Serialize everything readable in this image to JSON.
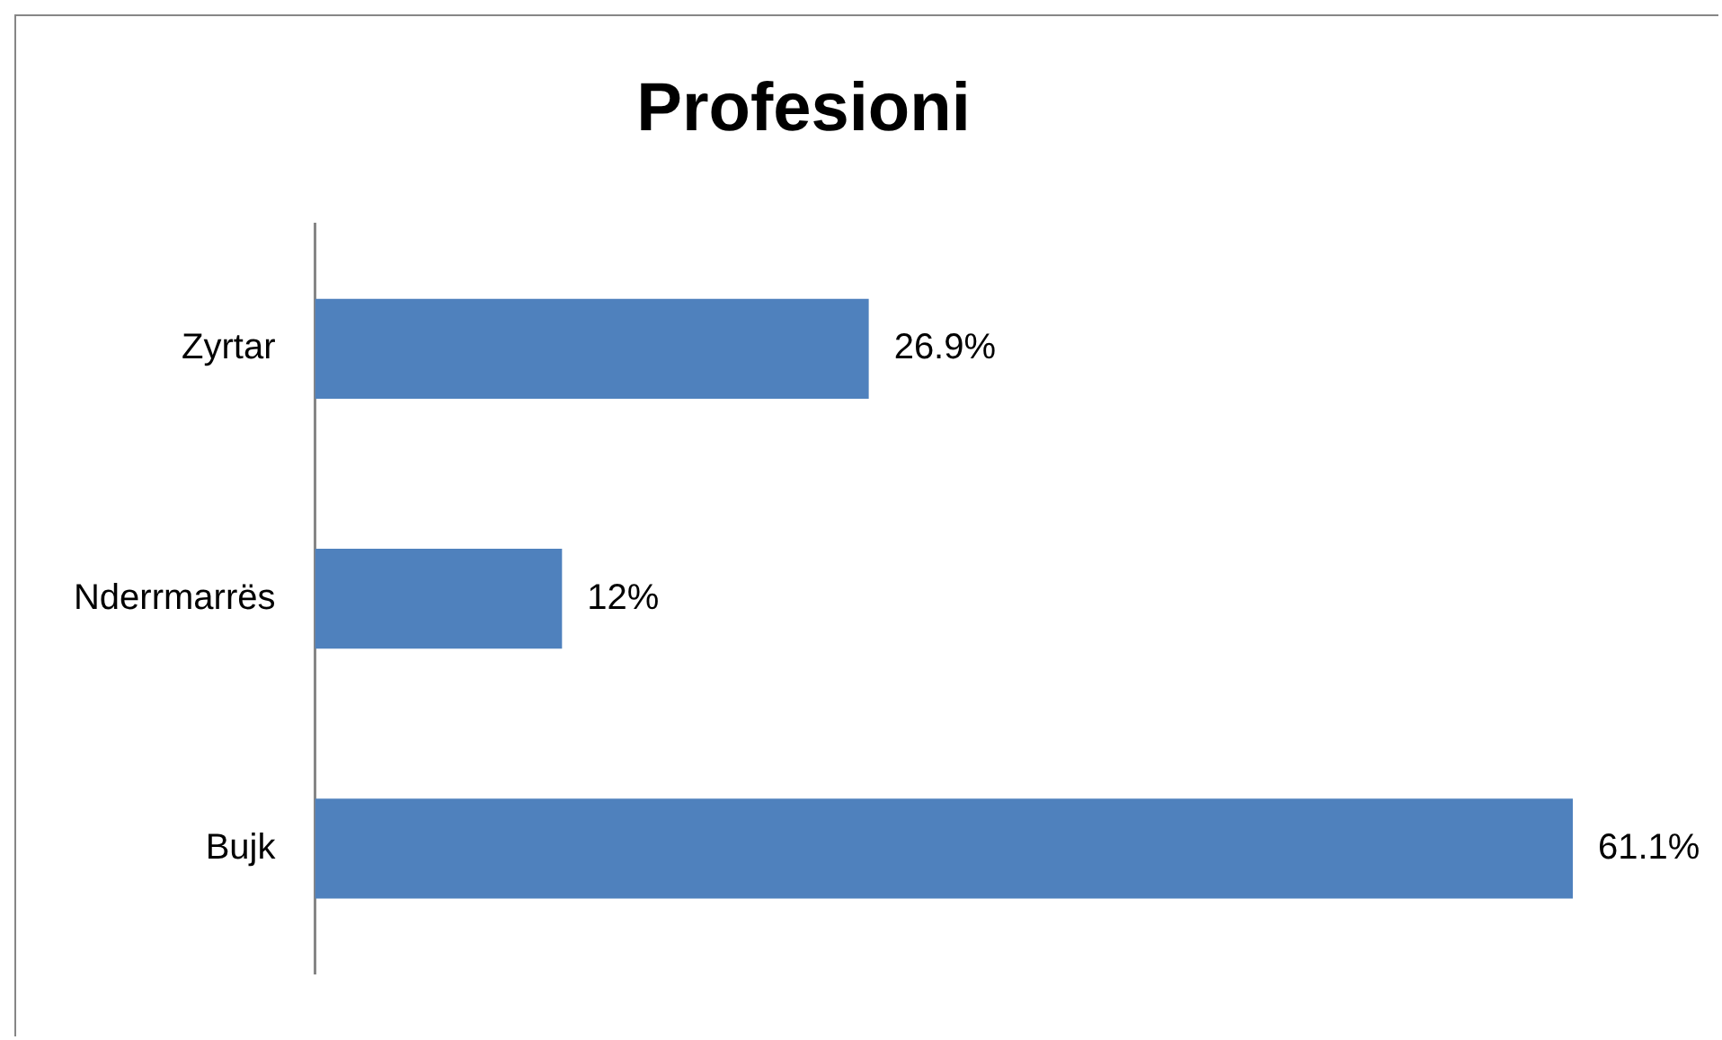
{
  "chart_data": {
    "type": "bar",
    "orientation": "horizontal",
    "title": "Profesioni",
    "categories": [
      "Zyrtar",
      "Nderrmarrës",
      "Bujk"
    ],
    "values": [
      26.9,
      12,
      61.1
    ],
    "value_labels": [
      "26.9%",
      "12%",
      "61.1%"
    ],
    "color": "#4f81bd",
    "legend": false
  }
}
